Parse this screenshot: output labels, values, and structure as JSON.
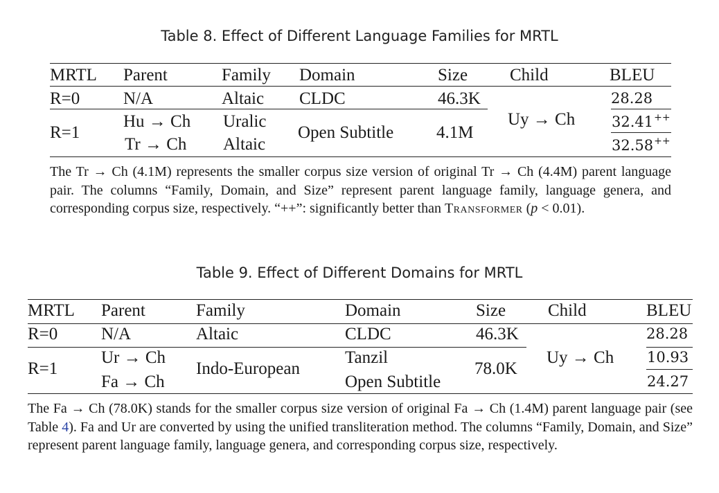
{
  "table8": {
    "caption": "Table 8.  Effect of Different Language Families for MRTL",
    "headers": [
      "MRTL",
      "Parent",
      "Family",
      "Domain",
      "Size",
      "Child",
      "BLEU"
    ],
    "rows": {
      "r0": {
        "mrtl": "R=0",
        "parent": "N/A",
        "family": "Altaic",
        "domain": "CLDC",
        "size": "46.3K",
        "bleu": "28.28"
      },
      "r1": {
        "mrtl": "R=1",
        "domain": "Open Subtitle",
        "size": "4.1M",
        "parent_a": "Hu → Ch",
        "family_a": "Uralic",
        "bleu_a": "32.41",
        "sig_a": "++",
        "parent_b": "Tr → Ch",
        "family_b": "Altaic",
        "bleu_b": "32.58",
        "sig_b": "++"
      }
    },
    "child": "Uy → Ch",
    "note": {
      "part1": "The Tr → Ch (4.1M) represents the smaller corpus size version of original Tr → Ch (4.4M) parent language pair. The columns “Family, Domain, and Size” represent parent language family, language genera, and corresponding corpus size, respectively. “++”: significantly better than ",
      "transformer": "Transformer",
      "open": " (",
      "p": "p",
      "rest": " < 0.01)."
    }
  },
  "table9": {
    "caption": "Table 9.  Effect of Different Domains for MRTL",
    "headers": [
      "MRTL",
      "Parent",
      "Family",
      "Domain",
      "Size",
      "Child",
      "BLEU"
    ],
    "rows": {
      "r0": {
        "mrtl": "R=0",
        "parent": "N/A",
        "family": "Altaic",
        "domain": "CLDC",
        "size": "46.3K",
        "bleu": "28.28"
      },
      "r1": {
        "mrtl": "R=1",
        "family": "Indo-European",
        "size": "78.0K",
        "parent_a": "Ur → Ch",
        "domain_a": "Tanzil",
        "bleu_a": "10.93",
        "parent_b": "Fa → Ch",
        "domain_b": "Open Subtitle",
        "bleu_b": "24.27"
      }
    },
    "child": "Uy → Ch",
    "note": {
      "part1": "The Fa → Ch (78.0K) stands for the smaller corpus size version of original Fa → Ch (1.4M) parent language pair (see Table ",
      "ref": "4",
      "part2": "). Fa and Ur are converted by using the unified transliteration method. The columns “Family, Domain, and Size” represent parent language family, language genera, and corresponding corpus size, respectively."
    }
  }
}
